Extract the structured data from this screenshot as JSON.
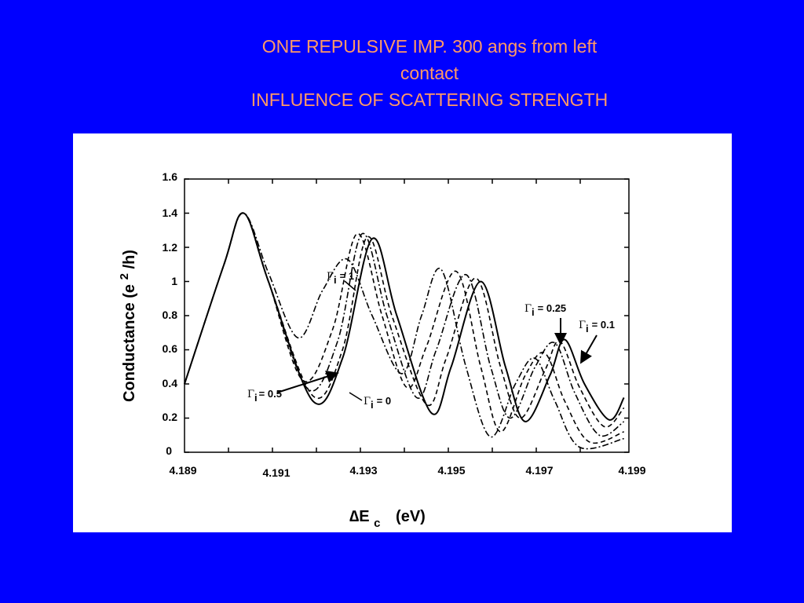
{
  "slide": {
    "title_lines": [
      "ONE REPULSIVE IMP. 300 angs from left",
      "contact",
      "INFLUENCE OF SCATTERING STRENGTH"
    ],
    "title_color": "#ff9966",
    "background_color": "#0000ff"
  },
  "chart_data": {
    "type": "line",
    "title": "",
    "xlabel": "ΔE c (eV)",
    "xlabel_parts": {
      "delta": "∆E",
      "sub": "c",
      "unit": "(eV)"
    },
    "ylabel": "Conductance (e2/h)",
    "ylabel_parts": {
      "pre": "Conductance (e",
      "sup": "2",
      "post": "/h)"
    },
    "xlim": [
      4.189,
      4.199
    ],
    "ylim": [
      0,
      1.6
    ],
    "x_ticks_upper": [
      "4.189",
      "4.193",
      "4.195",
      "4.197",
      "4.199"
    ],
    "x_ticks_lower": [
      "4.191"
    ],
    "y_ticks": [
      "1.6",
      "1.4",
      "1.2",
      "1",
      "0.8",
      "0.6",
      "0.4",
      "0.2",
      "0"
    ],
    "grid": false,
    "annotations": [
      {
        "gamma": "Γ",
        "sub": "i",
        "text": "= 1"
      },
      {
        "gamma": "Γ",
        "sub": "i",
        "text": "= 0.25"
      },
      {
        "gamma": "Γ",
        "sub": "i",
        "text": "= 0.1"
      },
      {
        "gamma": "Γ",
        "sub": "i",
        "text": "= 0.5"
      },
      {
        "gamma": "Γ",
        "sub": "i",
        "text": "= 0"
      }
    ],
    "series": [
      {
        "label": "Γi = 0",
        "style": "solid",
        "shift": 0.0,
        "depth": 1.0,
        "points": [
          [
            4.19,
            0.4
          ],
          [
            4.1908,
            1.1
          ],
          [
            4.1912,
            1.4
          ],
          [
            4.1917,
            1.0
          ],
          [
            4.1926,
            0.3
          ],
          [
            4.1932,
            0.55
          ],
          [
            4.1938,
            1.25
          ],
          [
            4.1943,
            0.8
          ],
          [
            4.195,
            0.23
          ],
          [
            4.1954,
            0.5
          ],
          [
            4.196,
            1.0
          ],
          [
            4.1965,
            0.5
          ],
          [
            4.1969,
            0.18
          ],
          [
            4.1974,
            0.45
          ],
          [
            4.1977,
            0.66
          ],
          [
            4.1981,
            0.4
          ],
          [
            4.1986,
            0.19
          ],
          [
            4.1989,
            0.32
          ]
        ]
      },
      {
        "label": "Γi = 0.1",
        "style": "dashed",
        "shift": -0.00012,
        "depth": 1.0,
        "points": [
          [
            4.19,
            0.4
          ],
          [
            4.1908,
            1.1
          ],
          [
            4.1912,
            1.4
          ],
          [
            4.1917,
            1.0
          ],
          [
            4.1926,
            0.33
          ],
          [
            4.1932,
            0.6
          ],
          [
            4.1937,
            1.26
          ],
          [
            4.1942,
            0.8
          ],
          [
            4.1949,
            0.28
          ],
          [
            4.1953,
            0.55
          ],
          [
            4.1959,
            1.02
          ],
          [
            4.1964,
            0.5
          ],
          [
            4.1968,
            0.2
          ],
          [
            4.1973,
            0.48
          ],
          [
            4.1976,
            0.65
          ],
          [
            4.198,
            0.38
          ],
          [
            4.1985,
            0.15
          ],
          [
            4.1989,
            0.26
          ]
        ]
      },
      {
        "label": "Γi = 0.25",
        "style": "dashed",
        "shift": -0.0003,
        "depth": 1.0,
        "points": [
          [
            4.19,
            0.4
          ],
          [
            4.1908,
            1.1
          ],
          [
            4.1912,
            1.4
          ],
          [
            4.1917,
            1.0
          ],
          [
            4.1925,
            0.37
          ],
          [
            4.1931,
            0.65
          ],
          [
            4.1936,
            1.28
          ],
          [
            4.1941,
            0.8
          ],
          [
            4.1947,
            0.32
          ],
          [
            4.1951,
            0.6
          ],
          [
            4.1957,
            1.04
          ],
          [
            4.1962,
            0.5
          ],
          [
            4.1966,
            0.2
          ],
          [
            4.1971,
            0.5
          ],
          [
            4.1975,
            0.64
          ],
          [
            4.1979,
            0.35
          ],
          [
            4.1984,
            0.1
          ],
          [
            4.1989,
            0.18
          ]
        ]
      },
      {
        "label": "Γi = 0.5",
        "style": "dashed",
        "shift": -0.0005,
        "depth": 1.0,
        "points": [
          [
            4.19,
            0.4
          ],
          [
            4.1908,
            1.1
          ],
          [
            4.1912,
            1.4
          ],
          [
            4.1917,
            1.0
          ],
          [
            4.1924,
            0.42
          ],
          [
            4.193,
            0.72
          ],
          [
            4.1935,
            1.28
          ],
          [
            4.194,
            0.8
          ],
          [
            4.1945,
            0.38
          ],
          [
            4.1949,
            0.62
          ],
          [
            4.1955,
            1.06
          ],
          [
            4.196,
            0.5
          ],
          [
            4.1964,
            0.12
          ],
          [
            4.1969,
            0.45
          ],
          [
            4.1973,
            0.58
          ],
          [
            4.1977,
            0.3
          ],
          [
            4.1982,
            0.06
          ],
          [
            4.1989,
            0.12
          ]
        ]
      },
      {
        "label": "Γi = 1",
        "style": "dashed",
        "shift": -0.0008,
        "depth": 1.0,
        "points": [
          [
            4.19,
            0.4
          ],
          [
            4.1908,
            1.1
          ],
          [
            4.1912,
            1.4
          ],
          [
            4.1917,
            1.05
          ],
          [
            4.1923,
            0.67
          ],
          [
            4.1928,
            0.95
          ],
          [
            4.1933,
            1.13
          ],
          [
            4.1938,
            0.8
          ],
          [
            4.1944,
            0.46
          ],
          [
            4.1948,
            0.8
          ],
          [
            4.1952,
            1.07
          ],
          [
            4.1957,
            0.5
          ],
          [
            4.1962,
            0.09
          ],
          [
            4.1967,
            0.4
          ],
          [
            4.1971,
            0.55
          ],
          [
            4.1975,
            0.3
          ],
          [
            4.198,
            0.03
          ],
          [
            4.1989,
            0.08
          ]
        ]
      }
    ]
  }
}
